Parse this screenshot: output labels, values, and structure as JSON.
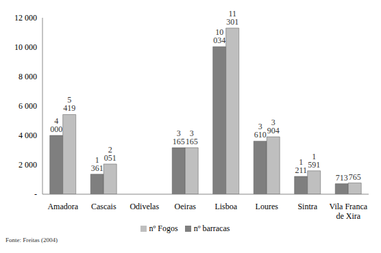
{
  "chart_data": {
    "type": "bar",
    "categories": [
      "Amadora",
      "Cascais",
      "Odivelas",
      "Oeiras",
      "Lisboa",
      "Loures",
      "Sintra",
      "Vila Franca de Xira"
    ],
    "series": [
      {
        "name": "nº barracas",
        "color": "#7f7f7f",
        "values": [
          4000,
          1361,
          null,
          3165,
          10034,
          3610,
          1211,
          713
        ],
        "value_labels": [
          "4 000",
          "1 361",
          null,
          "3 165",
          "10 034",
          "3 610",
          "1 211",
          "713"
        ]
      },
      {
        "name": "nº Fogos",
        "color": "#bfbfbf",
        "values": [
          5419,
          2051,
          null,
          3165,
          11301,
          3904,
          1591,
          765
        ],
        "value_labels": [
          "5 419",
          "2 051",
          null,
          "3 165",
          "11 301",
          "3 904",
          "1 591",
          "765"
        ]
      }
    ],
    "ylim": [
      0,
      12000
    ],
    "yticks": [
      {
        "value": 0,
        "label": "-"
      },
      {
        "value": 2000,
        "label": "2 000"
      },
      {
        "value": 4000,
        "label": "4 000"
      },
      {
        "value": 6000,
        "label": "6 000"
      },
      {
        "value": 8000,
        "label": "8 000"
      },
      {
        "value": 10000,
        "label": "10 000"
      },
      {
        "value": 12000,
        "label": "12 000"
      }
    ],
    "grid": false,
    "legend": "bottom",
    "data_labels": true,
    "annotations": [
      "Fonte: Freitas (2004)"
    ]
  }
}
